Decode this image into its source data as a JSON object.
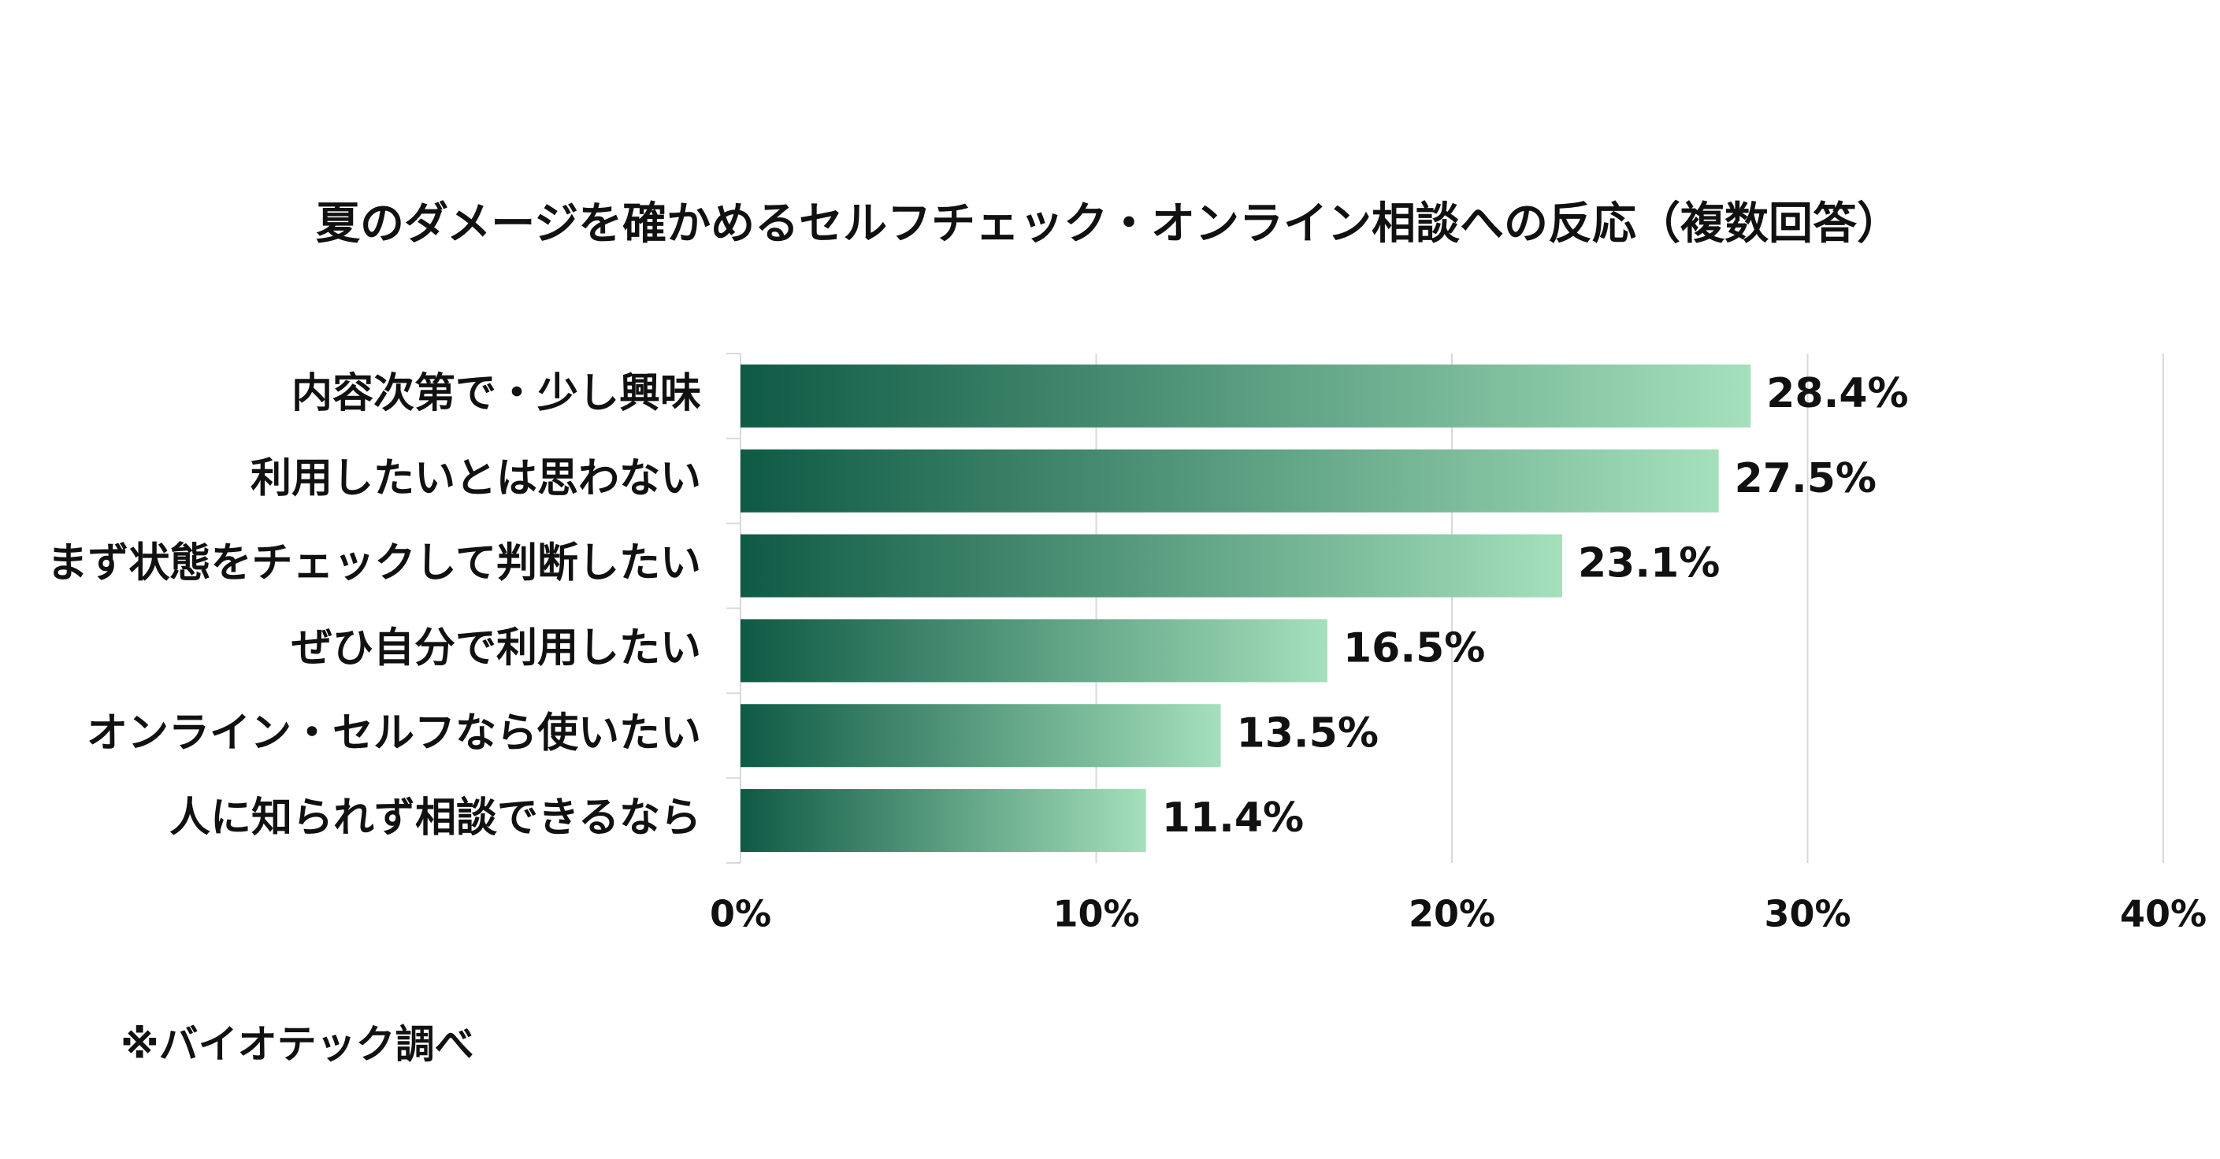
{
  "chart_data": {
    "type": "bar",
    "orientation": "horizontal",
    "title": "夏のダメージを確かめるセルフチェック・オンライン相談への反応（複数回答）",
    "categories": [
      "内容次第で・少し興味",
      "利用したいとは思わない",
      "まず状態をチェックして判断したい",
      "ぜひ自分で利用したい",
      "オンライン・セルフなら使いたい",
      "人に知られず相談できるなら"
    ],
    "values": [
      28.4,
      27.5,
      23.1,
      16.5,
      13.5,
      11.4
    ],
    "value_labels": [
      "28.4%",
      "27.5%",
      "23.1%",
      "16.5%",
      "13.5%",
      "11.4%"
    ],
    "color": [
      "#0f5a45",
      "#a4e0bb"
    ],
    "xlim": [
      0,
      40
    ],
    "xticks": [
      {
        "value": 0,
        "label": "0%"
      },
      {
        "value": 10,
        "label": "10%"
      },
      {
        "value": 20,
        "label": "20%"
      },
      {
        "value": 30,
        "label": "30%"
      },
      {
        "value": 40,
        "label": "40%"
      }
    ],
    "grid": true,
    "footnote": "※バイオテック調べ"
  }
}
